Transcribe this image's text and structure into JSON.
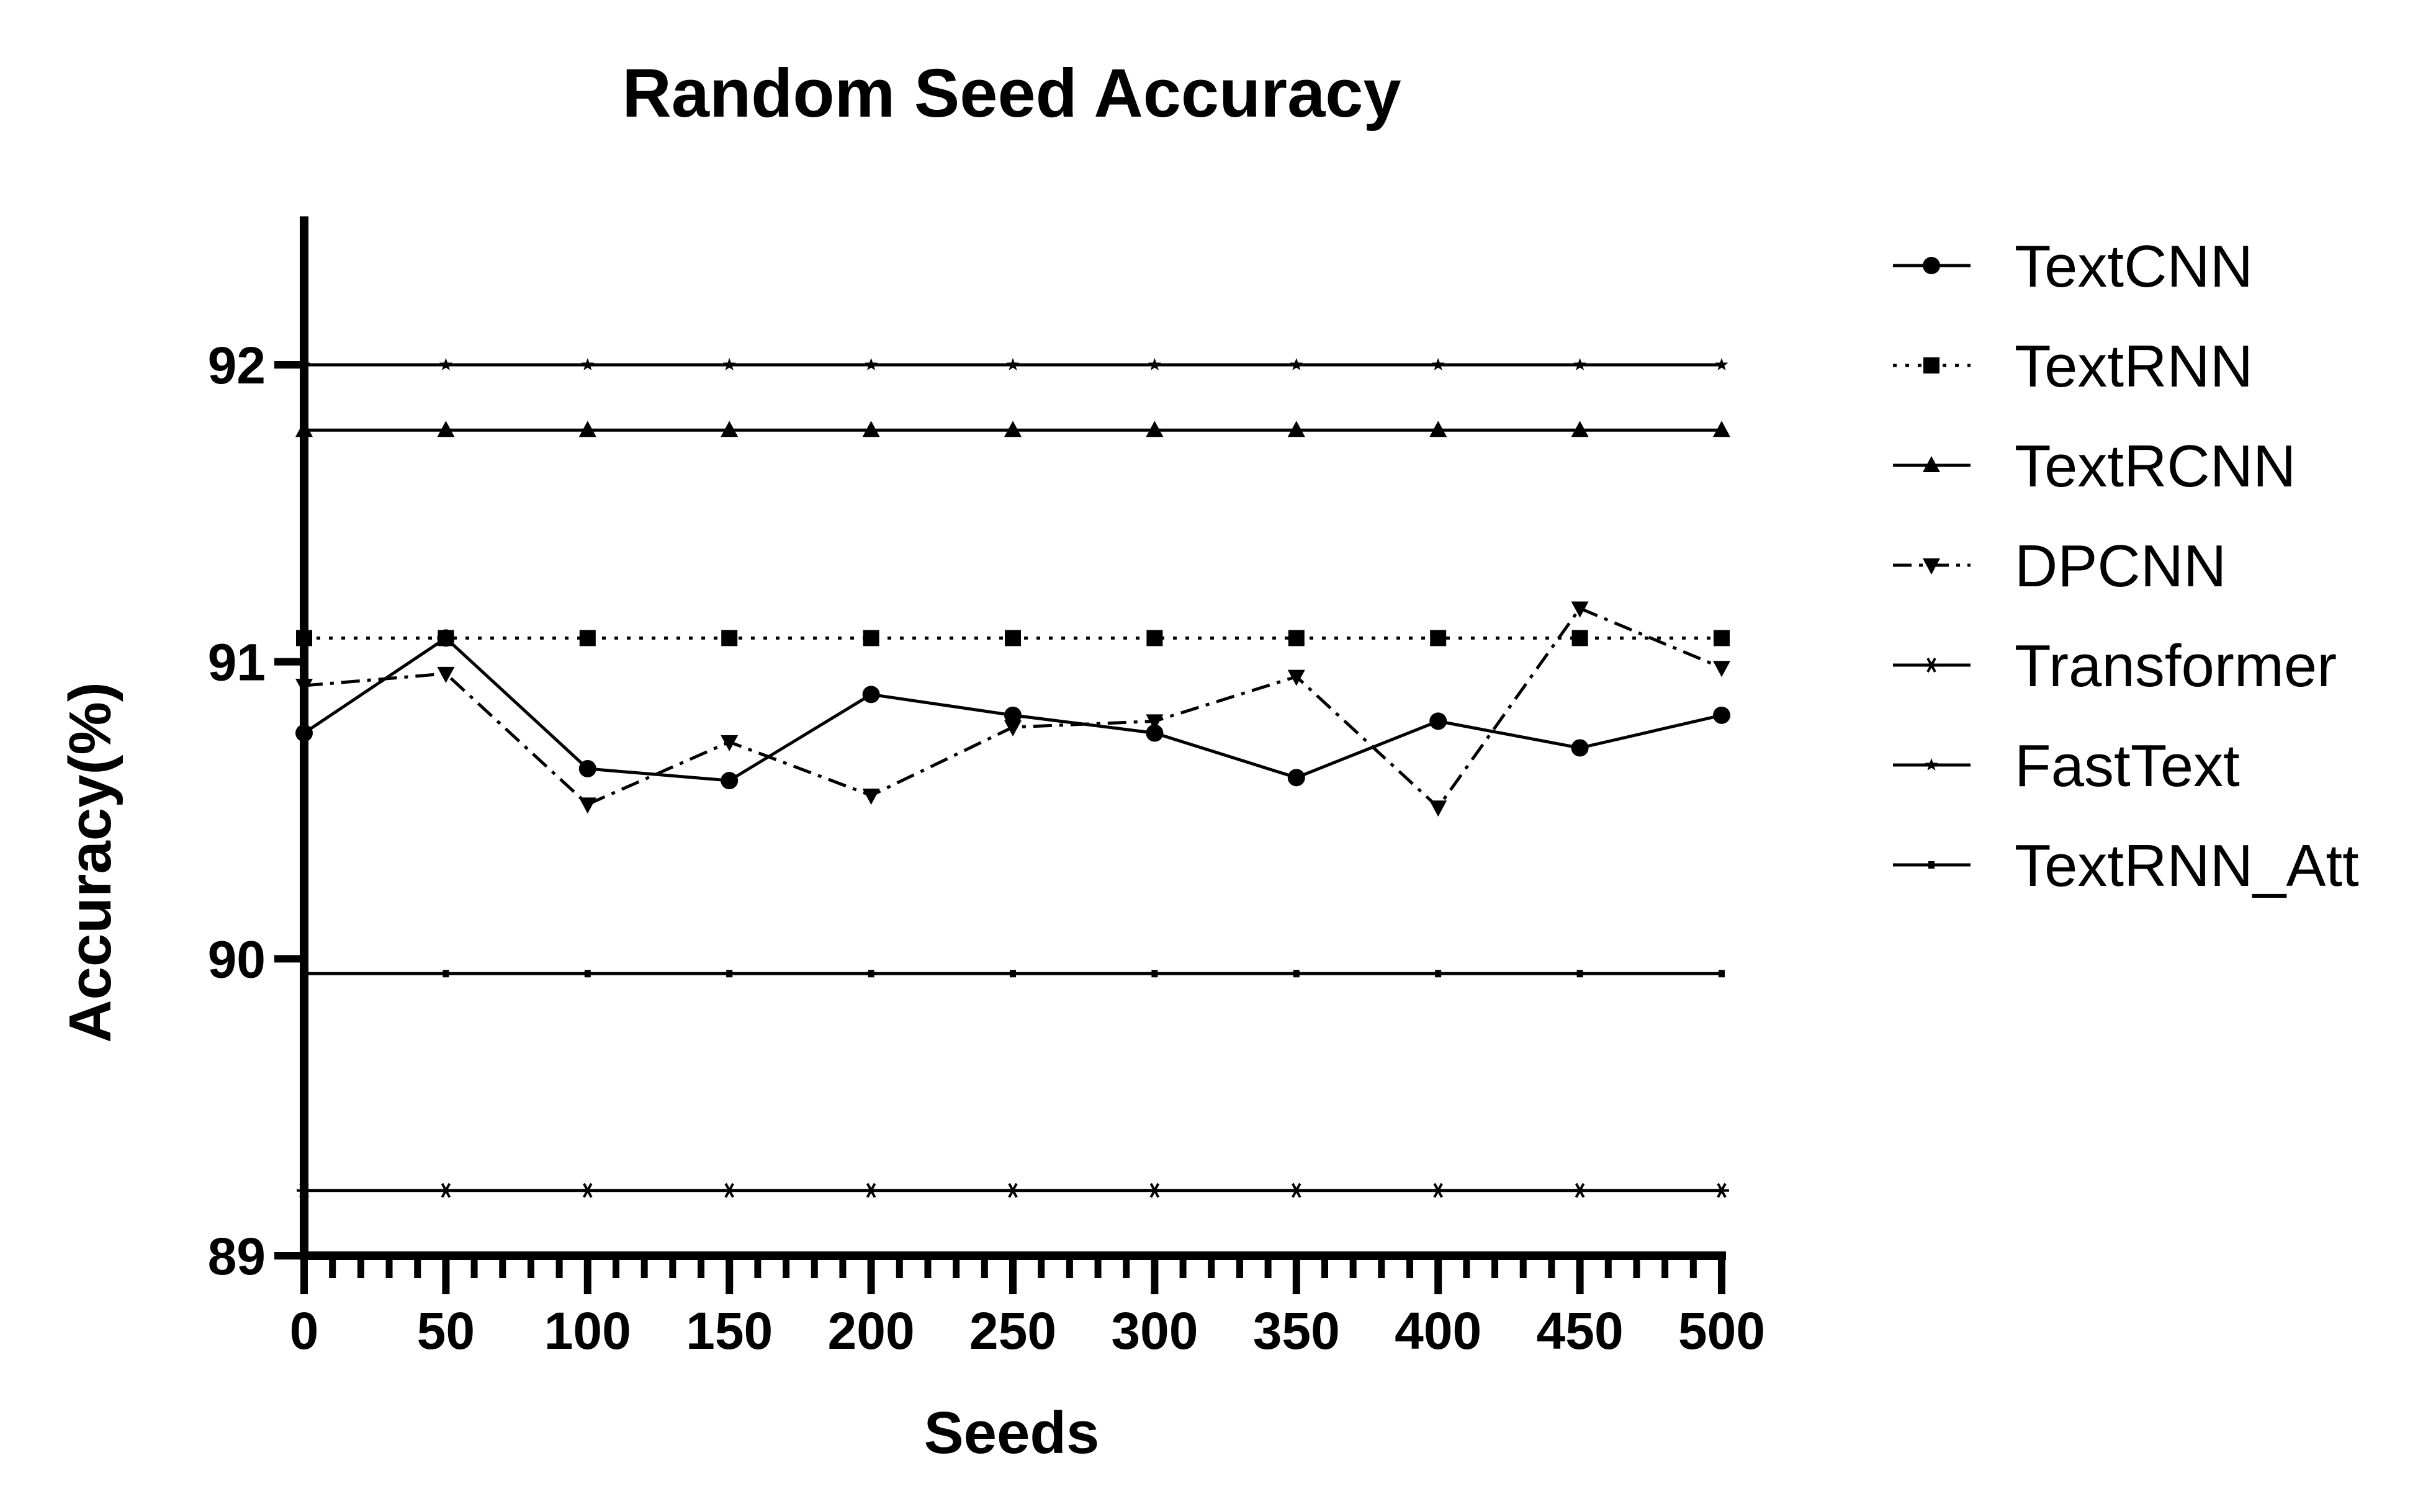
{
  "chart_data": {
    "type": "line",
    "title": "Random Seed Accuracy",
    "xlabel": "Seeds",
    "ylabel": "Accuracy(%)",
    "x": [
      0,
      50,
      100,
      150,
      200,
      250,
      300,
      350,
      400,
      450,
      500
    ],
    "xlim": [
      0,
      500
    ],
    "ylim": [
      89,
      92.5
    ],
    "x_ticks": [
      "0",
      "50",
      "100",
      "150",
      "200",
      "250",
      "300",
      "350",
      "400",
      "450",
      "500"
    ],
    "y_ticks": [
      "89",
      "90",
      "91",
      "92"
    ],
    "grid": false,
    "legend_position": "right",
    "series": [
      {
        "name": "TextCNN",
        "marker": "circle",
        "dash": "solid",
        "values": [
          90.76,
          91.08,
          90.64,
          90.6,
          90.89,
          90.82,
          90.76,
          90.61,
          90.8,
          90.71,
          90.82
        ]
      },
      {
        "name": "TextRNN",
        "marker": "square",
        "dash": "dotted",
        "values": [
          91.08,
          91.08,
          91.08,
          91.08,
          91.08,
          91.08,
          91.08,
          91.08,
          91.08,
          91.08,
          91.08
        ]
      },
      {
        "name": "TextRCNN",
        "marker": "triangle-up",
        "dash": "solid",
        "values": [
          91.78,
          91.78,
          91.78,
          91.78,
          91.78,
          91.78,
          91.78,
          91.78,
          91.78,
          91.78,
          91.78
        ]
      },
      {
        "name": "DPCNN",
        "marker": "triangle-down",
        "dash": "dashdot",
        "values": [
          90.92,
          90.96,
          90.52,
          90.73,
          90.55,
          90.78,
          90.8,
          90.95,
          90.51,
          91.18,
          90.98
        ]
      },
      {
        "name": "Transformer",
        "marker": "asterisk",
        "dash": "solid",
        "values": [
          89.22,
          89.22,
          89.22,
          89.22,
          89.22,
          89.22,
          89.22,
          89.22,
          89.22,
          89.22,
          89.22
        ]
      },
      {
        "name": "FastText",
        "marker": "star",
        "dash": "solid",
        "values": [
          92.0,
          92.0,
          92.0,
          92.0,
          92.0,
          92.0,
          92.0,
          92.0,
          92.0,
          92.0,
          92.0
        ]
      },
      {
        "name": "TextRNN_Att",
        "marker": "dash",
        "dash": "solid",
        "values": [
          89.95,
          89.95,
          89.95,
          89.95,
          89.95,
          89.95,
          89.95,
          89.95,
          89.95,
          89.95,
          89.95
        ]
      }
    ]
  }
}
